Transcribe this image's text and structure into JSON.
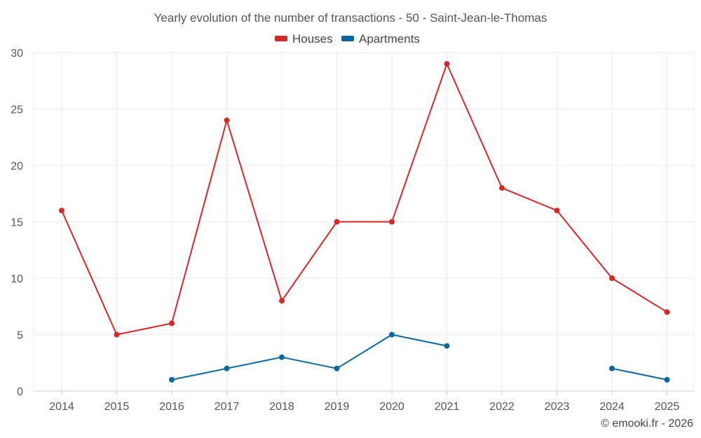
{
  "chart_data": {
    "type": "line",
    "title": "Yearly evolution of the number of transactions - 50 - Saint-Jean-le-Thomas",
    "categories": [
      "2014",
      "2015",
      "2016",
      "2017",
      "2018",
      "2019",
      "2020",
      "2021",
      "2022",
      "2023",
      "2024",
      "2025"
    ],
    "ylim": [
      0,
      30
    ],
    "yticks": [
      0,
      5,
      10,
      15,
      20,
      25,
      30
    ],
    "grid": true,
    "legend_position": "top-center",
    "series": [
      {
        "name": "Houses",
        "color": "#d62728",
        "values": [
          16,
          5,
          6,
          24,
          8,
          15,
          15,
          29,
          18,
          16,
          10,
          7
        ]
      },
      {
        "name": "Apartments",
        "color": "#0868a0",
        "values": [
          null,
          null,
          1,
          2,
          3,
          2,
          5,
          4,
          null,
          null,
          2,
          1
        ]
      }
    ],
    "xlabel": "",
    "ylabel": ""
  },
  "credit": "© emooki.fr - 2026"
}
